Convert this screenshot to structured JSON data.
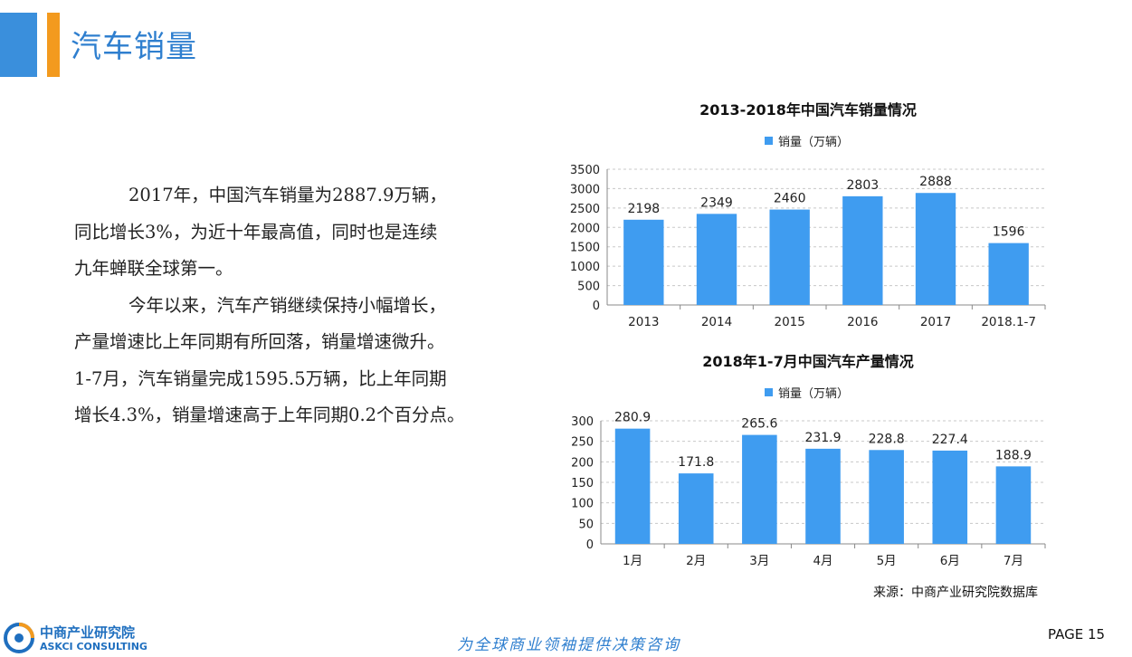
{
  "header": {
    "title": "汽车销量",
    "accent_colors": [
      "#3a8fdc",
      "#f39a1e"
    ]
  },
  "body": {
    "paragraphs": [
      [
        "2017年，中国汽车销量为2887.9万辆，",
        "同比增长3%，为近十年最高值，同时也是连续",
        "九年蝉联全球第一。"
      ],
      [
        "今年以来，汽车产销继续保持小幅增长，",
        "产量增速比上年同期有所回落，销量增速微升。",
        "1-7月，汽车销量完成1595.5万辆，比上年同期",
        "增长4.3%，销量增速高于上年同期0.2个百分点。"
      ]
    ]
  },
  "chart_data": [
    {
      "type": "bar",
      "title": "2013-2018年中国汽车销量情况",
      "categories": [
        "2013",
        "2014",
        "2015",
        "2016",
        "2017",
        "2018.1-7"
      ],
      "series": [
        {
          "name": "销量（万辆）",
          "values": [
            2198,
            2349,
            2460,
            2803,
            2888,
            1596
          ]
        }
      ],
      "data_labels": [
        "2198",
        "2349",
        "2460",
        "2803",
        "2888",
        "1596"
      ],
      "ylim": [
        0,
        3500
      ],
      "yticks": [
        0,
        500,
        1000,
        1500,
        2000,
        2500,
        3000,
        3500
      ],
      "grid": true,
      "legend": "top-center",
      "color": "#3f9cf0"
    },
    {
      "type": "bar",
      "title": "2018年1-7月中国汽车产量情况",
      "categories": [
        "1月",
        "2月",
        "3月",
        "4月",
        "5月",
        "6月",
        "7月"
      ],
      "series": [
        {
          "name": "销量（万辆）",
          "values": [
            280.9,
            171.8,
            265.6,
            231.9,
            228.8,
            227.4,
            188.9
          ]
        }
      ],
      "data_labels": [
        "280.9",
        "171.8",
        "265.6",
        "231.9",
        "228.8",
        "227.4",
        "188.9"
      ],
      "ylim": [
        0,
        300
      ],
      "yticks": [
        0,
        50,
        100,
        150,
        200,
        250,
        300
      ],
      "grid": true,
      "legend": "top-center",
      "color": "#3f9cf0"
    }
  ],
  "source": "来源：中商产业研究院数据库",
  "footer": {
    "logo_cn": "中商产业研究院",
    "logo_en": "ASKCI CONSULTING",
    "slogan": "为全球商业领袖提供决策咨询",
    "page": "PAGE 15"
  }
}
